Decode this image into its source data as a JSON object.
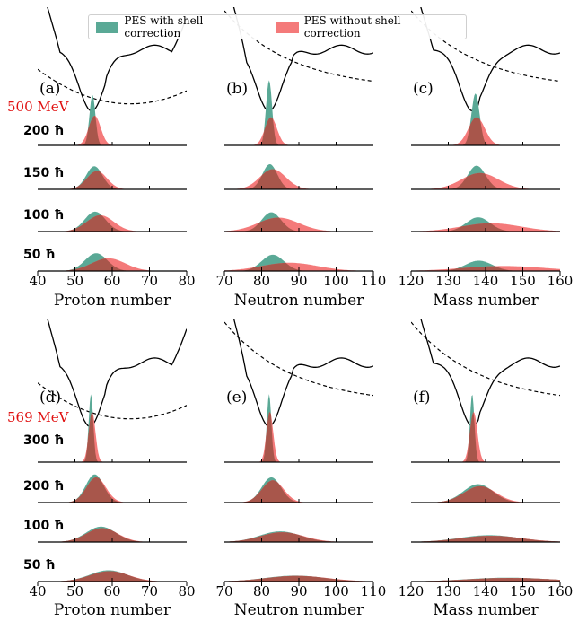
{
  "legend": {
    "with": {
      "label": "PES with shell correction",
      "color": "#5aa996"
    },
    "without": {
      "label": "PES without shell correction",
      "color": "#f47a7a"
    },
    "overlap_color": "#a8564b"
  },
  "chart_data": [
    {
      "type": "area",
      "block": "top",
      "energy": "500 MeV",
      "rows": [
        "200 ħ",
        "150 ħ",
        "100 ħ",
        "50 ħ"
      ],
      "panels": [
        {
          "label": "(a)",
          "xlabel": "Proton number",
          "xlim": [
            40,
            80
          ],
          "ticks": [
            40,
            50,
            60,
            70,
            80
          ],
          "with": [
            {
              "mean": 54.7,
              "sigma": 0.8
            },
            {
              "mean": 55.2,
              "sigma": 2.2
            },
            {
              "mean": 55.4,
              "sigma": 2.8
            },
            {
              "mean": 55.7,
              "sigma": 3.0
            }
          ],
          "without": [
            {
              "mean": 55.3,
              "sigma": 1.6
            },
            {
              "mean": 55.9,
              "sigma": 2.7
            },
            {
              "mean": 56.8,
              "sigma": 3.6
            },
            {
              "mean": 59.0,
              "sigma": 4.5
            }
          ],
          "with_peaks": [
            1.7,
            0.78,
            0.67,
            0.6
          ],
          "without_peaks": [
            1.0,
            0.62,
            0.55,
            0.43
          ]
        },
        {
          "label": "(b)",
          "xlabel": "Neutron number",
          "xlim": [
            70,
            110
          ],
          "ticks": [
            70,
            80,
            90,
            100,
            110
          ],
          "with": [
            {
              "mean": 82.0,
              "sigma": 0.8
            },
            {
              "mean": 82.2,
              "sigma": 2.0
            },
            {
              "mean": 82.6,
              "sigma": 2.6
            },
            {
              "mean": 83.0,
              "sigma": 3.0
            }
          ],
          "without": [
            {
              "mean": 82.5,
              "sigma": 1.6
            },
            {
              "mean": 83.0,
              "sigma": 3.5
            },
            {
              "mean": 84.5,
              "sigma": 5.5
            },
            {
              "mean": 87.5,
              "sigma": 7.5
            }
          ],
          "with_peaks": [
            2.2,
            0.85,
            0.65,
            0.55
          ],
          "without_peaks": [
            0.95,
            0.68,
            0.47,
            0.28
          ]
        },
        {
          "label": "(c)",
          "xlabel": "Mass number",
          "xlim": [
            120,
            160
          ],
          "ticks": [
            120,
            130,
            140,
            150,
            160
          ],
          "with": [
            {
              "mean": 137.3,
              "sigma": 1.1
            },
            {
              "mean": 137.6,
              "sigma": 2.4
            },
            {
              "mean": 138.0,
              "sigma": 3.2
            },
            {
              "mean": 138.2,
              "sigma": 3.6
            }
          ],
          "without": [
            {
              "mean": 137.6,
              "sigma": 2.2
            },
            {
              "mean": 138.5,
              "sigma": 5.0
            },
            {
              "mean": 141.5,
              "sigma": 8.0
            },
            {
              "mean": 145.0,
              "sigma": 11.0
            }
          ],
          "with_peaks": [
            1.75,
            0.8,
            0.48,
            0.35
          ],
          "without_peaks": [
            0.95,
            0.55,
            0.28,
            0.17
          ]
        }
      ]
    },
    {
      "type": "area",
      "block": "bottom",
      "energy": "569 MeV",
      "rows": [
        "300 ħ",
        "200 ħ",
        "100 ħ",
        "50 ħ"
      ],
      "panels": [
        {
          "label": "(d)",
          "xlabel": "Proton number",
          "xlim": [
            40,
            80
          ],
          "ticks": [
            40,
            50,
            60,
            70,
            80
          ],
          "with": [
            {
              "mean": 54.3,
              "sigma": 0.6
            },
            {
              "mean": 55.3,
              "sigma": 2.4
            },
            {
              "mean": 57.0,
              "sigma": 4.0
            },
            {
              "mean": 59.0,
              "sigma": 5.0
            }
          ],
          "without": [
            {
              "mean": 54.6,
              "sigma": 0.9
            },
            {
              "mean": 55.7,
              "sigma": 2.6
            },
            {
              "mean": 57.3,
              "sigma": 4.2
            },
            {
              "mean": 59.3,
              "sigma": 5.2
            }
          ],
          "with_peaks": [
            2.3,
            0.95,
            0.52,
            0.38
          ],
          "without_peaks": [
            1.7,
            0.85,
            0.47,
            0.35
          ]
        },
        {
          "label": "(e)",
          "xlabel": "Neutron number",
          "xlim": [
            70,
            110
          ],
          "ticks": [
            70,
            80,
            90,
            100,
            110
          ],
          "with": [
            {
              "mean": 82.0,
              "sigma": 0.6
            },
            {
              "mean": 82.6,
              "sigma": 2.6
            },
            {
              "mean": 85.0,
              "sigma": 5.5
            },
            {
              "mean": 89.0,
              "sigma": 8.0
            }
          ],
          "without": [
            {
              "mean": 82.2,
              "sigma": 0.9
            },
            {
              "mean": 83.0,
              "sigma": 2.9
            },
            {
              "mean": 85.5,
              "sigma": 5.8
            },
            {
              "mean": 89.5,
              "sigma": 8.3
            }
          ],
          "with_peaks": [
            2.3,
            0.85,
            0.36,
            0.2
          ],
          "without_peaks": [
            1.7,
            0.75,
            0.33,
            0.19
          ]
        },
        {
          "label": "(f)",
          "xlabel": "Mass number",
          "xlim": [
            120,
            160
          ],
          "ticks": [
            120,
            130,
            140,
            150,
            160
          ],
          "with": [
            {
              "mean": 136.4,
              "sigma": 0.6
            },
            {
              "mean": 138.0,
              "sigma": 4.0
            },
            {
              "mean": 141.0,
              "sigma": 8.0
            },
            {
              "mean": 146.0,
              "sigma": 11.0
            }
          ],
          "without": [
            {
              "mean": 136.8,
              "sigma": 1.0
            },
            {
              "mean": 138.5,
              "sigma": 4.3
            },
            {
              "mean": 141.5,
              "sigma": 8.3
            },
            {
              "mean": 146.5,
              "sigma": 11.3
            }
          ],
          "with_peaks": [
            2.3,
            0.62,
            0.23,
            0.13
          ],
          "without_peaks": [
            1.7,
            0.55,
            0.21,
            0.12
          ]
        }
      ]
    }
  ]
}
